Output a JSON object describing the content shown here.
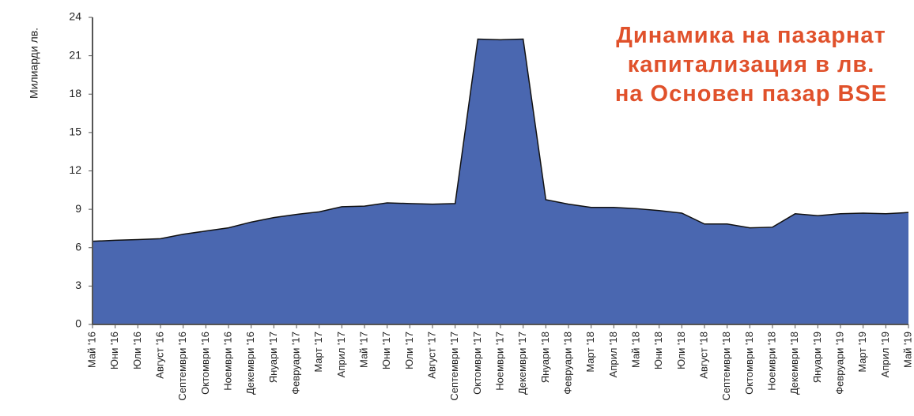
{
  "chart_data": {
    "type": "area",
    "title": [
      "Динамика на пазарнат",
      "капитализация в лв.",
      "на Основен пазар BSE"
    ],
    "y_label": "Милиарди лв.",
    "categories": [
      "Май '16",
      "Юни '16",
      "Юли '16",
      "Август '16",
      "Септември '16",
      "Октомври '16",
      "Ноември '16",
      "Декември '16",
      "Януари '17",
      "Февруари '17",
      "Март '17",
      "Април '17",
      "Май '17",
      "Юни '17",
      "Юли '17",
      "Август '17",
      "Септември '17",
      "Октомври '17",
      "Ноември '17",
      "Декември '17",
      "Януари '18",
      "Февруари '18",
      "Март '18",
      "Април '18",
      "Май '18",
      "Юни '18",
      "Юли '18",
      "Август '18",
      "Септември '18",
      "Октомври '18",
      "Ноември '18",
      "Декември '18",
      "Януари '19",
      "Февруари '19",
      "Март '19",
      "Април '19",
      "Май '19"
    ],
    "values": [
      6.5,
      6.58,
      6.63,
      6.7,
      7.05,
      7.3,
      7.55,
      8.0,
      8.35,
      8.6,
      8.8,
      9.2,
      9.25,
      9.5,
      9.45,
      9.4,
      9.45,
      22.3,
      22.25,
      22.3,
      9.75,
      9.4,
      9.15,
      9.15,
      9.05,
      8.9,
      8.7,
      7.85,
      7.85,
      7.55,
      7.6,
      8.65,
      8.5,
      8.65,
      8.7,
      8.65,
      8.75
    ],
    "color": "#4a67b0",
    "ylim": [
      0,
      24
    ],
    "yticks": [
      0,
      3,
      6,
      9,
      12,
      15,
      18,
      21,
      24
    ]
  }
}
